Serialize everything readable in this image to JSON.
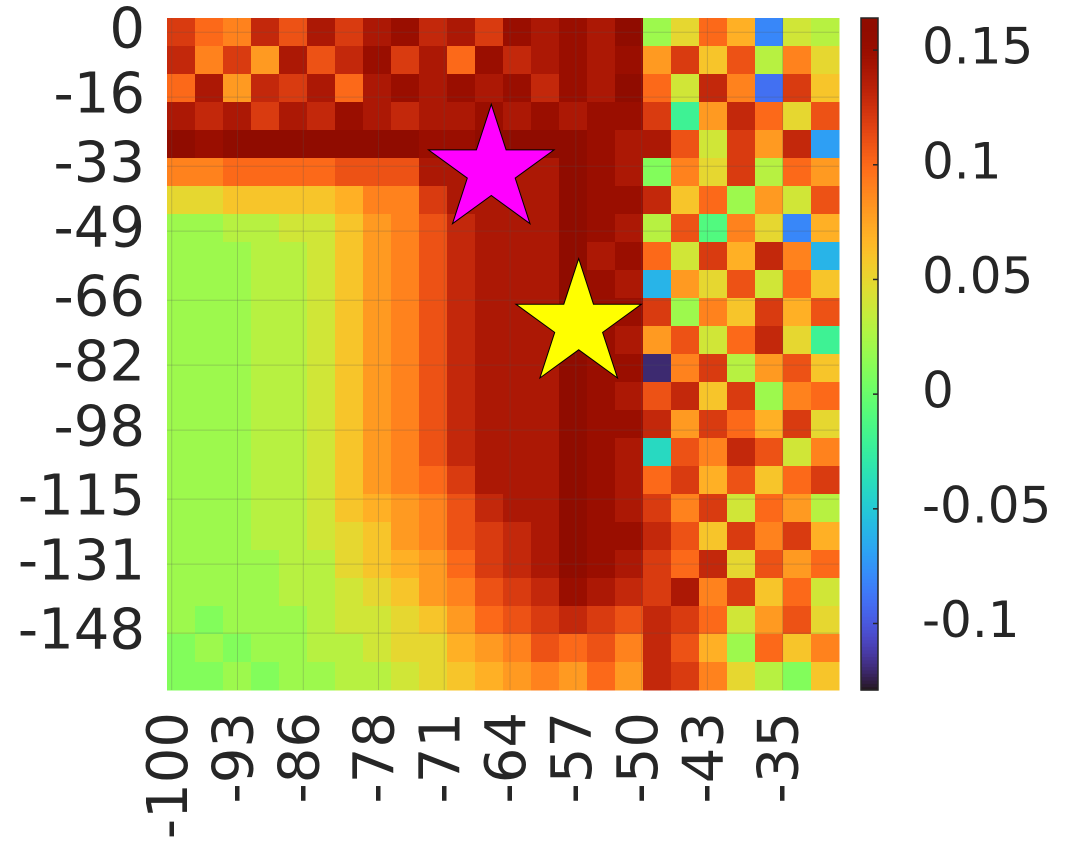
{
  "chart_data": {
    "type": "heatmap",
    "colormap": "turbo",
    "grid": true,
    "xlim": [
      -100.5,
      -29
    ],
    "ylim": [
      3.5,
      -162
    ],
    "clim": [
      -0.129,
      0.164
    ],
    "xticks": [
      -100,
      -93,
      -86,
      -78,
      -71,
      -64,
      -57,
      -50,
      -43,
      -35
    ],
    "yticks": [
      0,
      -16,
      -33,
      -49,
      -66,
      -82,
      -98,
      -115,
      -131,
      -148
    ],
    "cticks": [
      0.15,
      0.1,
      0.05,
      0,
      -0.05,
      -0.1
    ],
    "markers": [
      {
        "x": -66,
        "y": -34,
        "color": "#ff00ff"
      },
      {
        "x": -56.7,
        "y": -72,
        "color": "#ffff00"
      }
    ],
    "z": [
      [
        0.12,
        0.1,
        0.09,
        0.13,
        0.11,
        0.14,
        0.12,
        0.14,
        0.15,
        0.13,
        0.14,
        0.12,
        0.15,
        0.14,
        0.15,
        0.14,
        0.16,
        0.02,
        0.05,
        0.1,
        0.07,
        -0.08,
        0.04,
        0.03
      ],
      [
        0.13,
        0.09,
        0.12,
        0.08,
        0.14,
        0.11,
        0.13,
        0.15,
        0.12,
        0.14,
        0.1,
        0.15,
        0.13,
        0.14,
        0.15,
        0.14,
        0.15,
        0.08,
        0.12,
        0.06,
        0.11,
        0.03,
        0.09,
        0.05
      ],
      [
        0.1,
        0.14,
        0.08,
        0.13,
        0.12,
        0.14,
        0.1,
        0.14,
        0.15,
        0.14,
        0.15,
        0.14,
        0.15,
        0.13,
        0.15,
        0.14,
        0.16,
        0.1,
        0.04,
        0.13,
        0.09,
        -0.09,
        0.12,
        0.06
      ],
      [
        0.14,
        0.13,
        0.14,
        0.12,
        0.14,
        0.13,
        0.15,
        0.14,
        0.13,
        0.14,
        0.14,
        0.15,
        0.14,
        0.15,
        0.14,
        0.15,
        0.15,
        0.12,
        -0.02,
        0.08,
        0.13,
        0.1,
        0.05,
        0.11
      ],
      [
        0.16,
        0.15,
        0.16,
        0.16,
        0.16,
        0.16,
        0.16,
        0.16,
        0.16,
        0.15,
        0.15,
        0.16,
        0.16,
        0.16,
        0.16,
        0.15,
        0.14,
        0.14,
        0.11,
        0.04,
        0.12,
        0.08,
        0.13,
        -0.07
      ],
      [
        0.09,
        0.09,
        0.1,
        0.1,
        0.1,
        0.1,
        0.11,
        0.11,
        0.11,
        0.14,
        0.14,
        0.15,
        0.14,
        0.14,
        0.16,
        0.15,
        0.14,
        0.01,
        0.09,
        0.05,
        0.12,
        0.03,
        0.1,
        0.08
      ],
      [
        0.05,
        0.05,
        0.06,
        0.06,
        0.06,
        0.06,
        0.07,
        0.09,
        0.09,
        0.12,
        0.14,
        0.14,
        0.14,
        0.14,
        0.16,
        0.15,
        0.15,
        0.13,
        0.06,
        0.1,
        0.02,
        0.08,
        0.04,
        0.11
      ],
      [
        0.02,
        0.02,
        0.03,
        0.03,
        0.04,
        0.04,
        0.06,
        0.08,
        0.09,
        0.11,
        0.13,
        0.14,
        0.14,
        0.14,
        0.16,
        0.15,
        0.14,
        0.03,
        0.11,
        -0.01,
        0.09,
        0.05,
        -0.08,
        0.07
      ],
      [
        0.02,
        0.02,
        0.02,
        0.03,
        0.03,
        0.04,
        0.06,
        0.08,
        0.09,
        0.11,
        0.13,
        0.14,
        0.14,
        0.14,
        0.16,
        0.14,
        0.15,
        0.1,
        0.04,
        0.12,
        0.07,
        0.13,
        0.09,
        -0.06
      ],
      [
        0.02,
        0.02,
        0.02,
        0.03,
        0.03,
        0.04,
        0.06,
        0.08,
        0.09,
        0.11,
        0.13,
        0.14,
        0.14,
        0.14,
        0.16,
        0.15,
        0.14,
        -0.06,
        0.08,
        0.05,
        0.11,
        0.04,
        0.1,
        0.06
      ],
      [
        0.02,
        0.02,
        0.02,
        0.03,
        0.03,
        0.04,
        0.06,
        0.08,
        0.09,
        0.11,
        0.13,
        0.14,
        0.14,
        0.14,
        0.16,
        0.15,
        0.15,
        0.12,
        0.02,
        0.09,
        0.06,
        0.12,
        0.07,
        0.11
      ],
      [
        0.02,
        0.02,
        0.02,
        0.03,
        0.03,
        0.04,
        0.06,
        0.08,
        0.09,
        0.11,
        0.13,
        0.14,
        0.14,
        0.14,
        0.16,
        0.15,
        0.14,
        0.08,
        0.11,
        0.04,
        0.1,
        0.13,
        0.05,
        -0.02
      ],
      [
        0.02,
        0.02,
        0.02,
        0.03,
        0.03,
        0.04,
        0.06,
        0.08,
        0.09,
        0.11,
        0.13,
        0.14,
        0.14,
        0.14,
        0.16,
        0.15,
        0.15,
        -0.12,
        0.09,
        0.12,
        0.03,
        0.08,
        0.11,
        0.06
      ],
      [
        0.02,
        0.02,
        0.02,
        0.03,
        0.03,
        0.04,
        0.06,
        0.08,
        0.09,
        0.11,
        0.13,
        0.14,
        0.14,
        0.14,
        0.16,
        0.15,
        0.14,
        0.11,
        0.13,
        0.06,
        0.12,
        0.02,
        0.09,
        0.1
      ],
      [
        0.02,
        0.02,
        0.02,
        0.03,
        0.03,
        0.04,
        0.06,
        0.08,
        0.09,
        0.11,
        0.13,
        0.14,
        0.14,
        0.14,
        0.16,
        0.15,
        0.15,
        0.13,
        0.08,
        0.12,
        0.1,
        0.07,
        0.12,
        0.05
      ],
      [
        0.02,
        0.02,
        0.02,
        0.03,
        0.03,
        0.04,
        0.06,
        0.08,
        0.09,
        0.11,
        0.13,
        0.14,
        0.14,
        0.14,
        0.16,
        0.15,
        0.14,
        -0.04,
        0.11,
        0.09,
        0.13,
        0.11,
        0.04,
        0.09
      ],
      [
        0.02,
        0.02,
        0.02,
        0.03,
        0.03,
        0.04,
        0.06,
        0.08,
        0.09,
        0.1,
        0.12,
        0.14,
        0.14,
        0.14,
        0.16,
        0.15,
        0.14,
        0.1,
        0.12,
        0.07,
        0.11,
        0.06,
        0.1,
        0.12
      ],
      [
        0.02,
        0.02,
        0.02,
        0.03,
        0.03,
        0.04,
        0.06,
        0.07,
        0.08,
        0.09,
        0.11,
        0.13,
        0.14,
        0.14,
        0.16,
        0.15,
        0.14,
        0.12,
        0.09,
        0.12,
        0.04,
        0.1,
        0.08,
        0.03
      ],
      [
        0.02,
        0.02,
        0.02,
        0.03,
        0.03,
        0.04,
        0.05,
        0.06,
        0.08,
        0.09,
        0.11,
        0.12,
        0.13,
        0.14,
        0.16,
        0.15,
        0.15,
        0.13,
        0.11,
        0.06,
        0.12,
        0.09,
        0.12,
        0.07
      ],
      [
        0.02,
        0.02,
        0.02,
        0.02,
        0.03,
        0.03,
        0.05,
        0.06,
        0.07,
        0.08,
        0.1,
        0.12,
        0.13,
        0.14,
        0.16,
        0.15,
        0.14,
        0.12,
        0.1,
        0.13,
        0.05,
        0.11,
        0.08,
        0.1
      ],
      [
        0.02,
        0.02,
        0.02,
        0.02,
        0.03,
        0.03,
        0.04,
        0.05,
        0.06,
        0.08,
        0.09,
        0.11,
        0.12,
        0.13,
        0.15,
        0.14,
        0.13,
        0.12,
        0.14,
        0.09,
        0.12,
        0.06,
        0.1,
        0.04
      ],
      [
        0.02,
        0.01,
        0.02,
        0.02,
        0.02,
        0.03,
        0.04,
        0.04,
        0.05,
        0.06,
        0.08,
        0.1,
        0.11,
        0.12,
        0.13,
        0.12,
        0.11,
        0.13,
        0.12,
        0.1,
        0.04,
        0.08,
        0.11,
        0.05
      ],
      [
        0.01,
        0.02,
        0.01,
        0.02,
        0.02,
        0.03,
        0.03,
        0.04,
        0.05,
        0.05,
        0.07,
        0.08,
        0.09,
        0.11,
        0.1,
        0.11,
        0.09,
        0.13,
        0.11,
        0.07,
        0.02,
        0.1,
        0.06,
        0.09
      ],
      [
        0.01,
        0.01,
        0.02,
        0.01,
        0.02,
        0.02,
        0.03,
        0.03,
        0.04,
        0.05,
        0.06,
        0.07,
        0.08,
        0.09,
        0.08,
        0.1,
        0.08,
        0.13,
        0.12,
        0.09,
        0.05,
        0.03,
        0.01,
        0.06
      ]
    ]
  }
}
